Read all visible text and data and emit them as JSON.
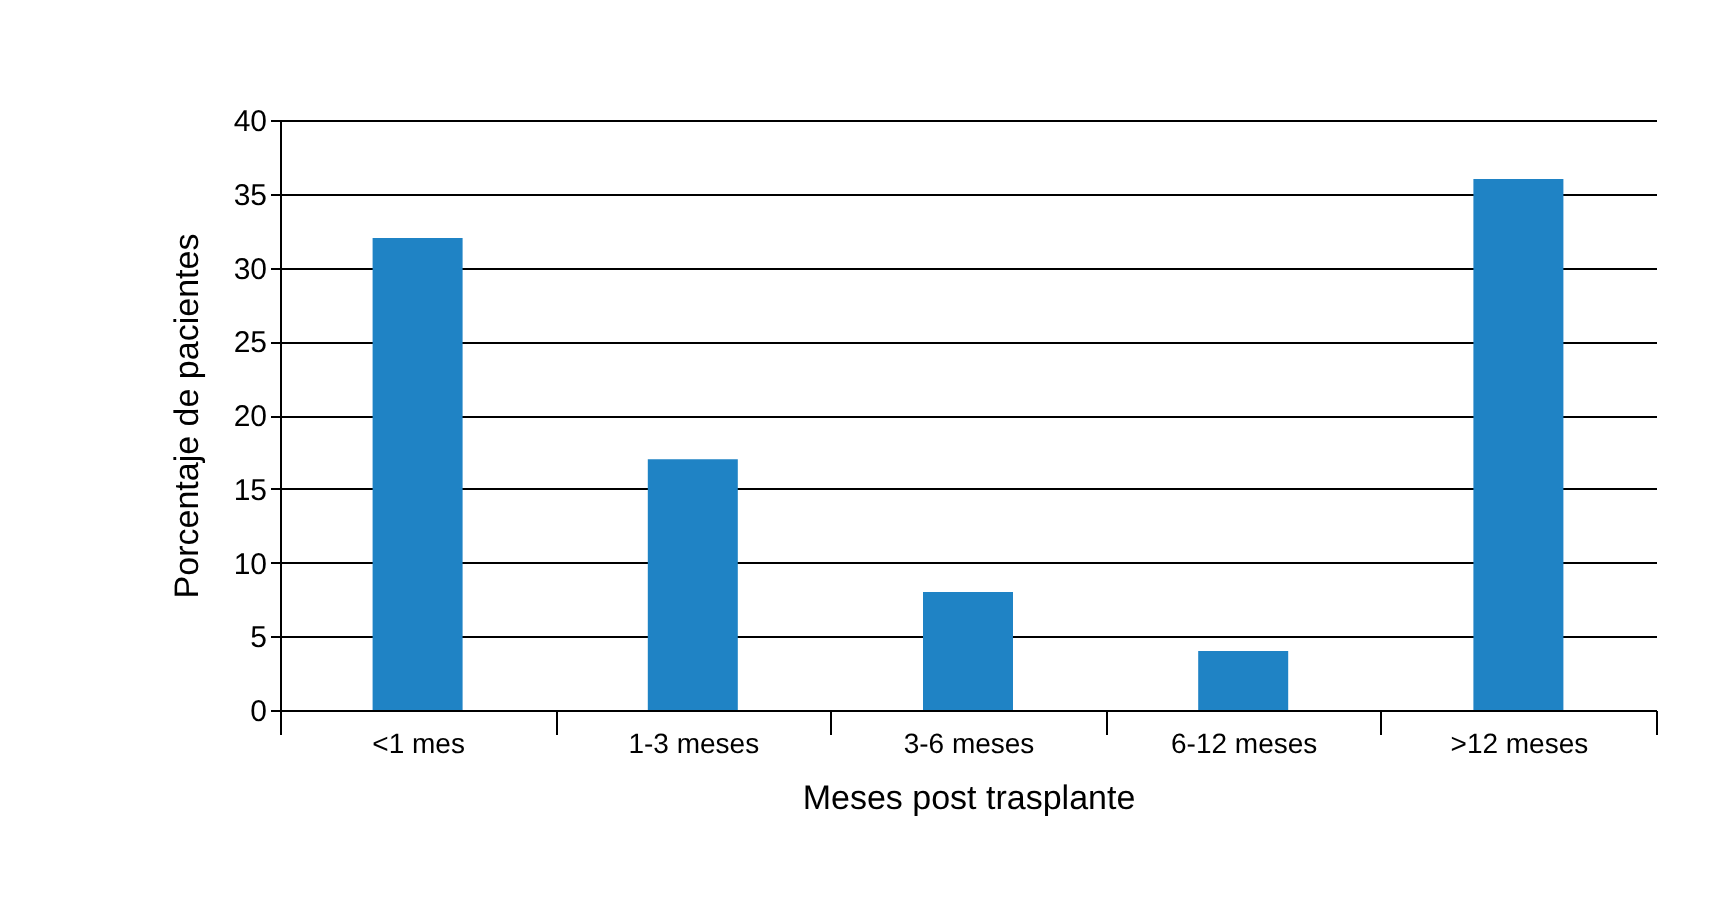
{
  "chart_data": {
    "type": "bar",
    "xlabel": "Meses post trasplante",
    "ylabel": "Porcentaje de pacientes",
    "categories": [
      "<1 mes",
      "1-3 meses",
      "3-6 meses",
      "6-12 meses",
      ">12 meses"
    ],
    "values": [
      32,
      17,
      8,
      4,
      36
    ],
    "color": "#1f83c5",
    "ylim": [
      0,
      40
    ],
    "yticks": [
      0,
      5,
      10,
      15,
      20,
      25,
      30,
      35,
      40
    ],
    "grid": "y"
  }
}
